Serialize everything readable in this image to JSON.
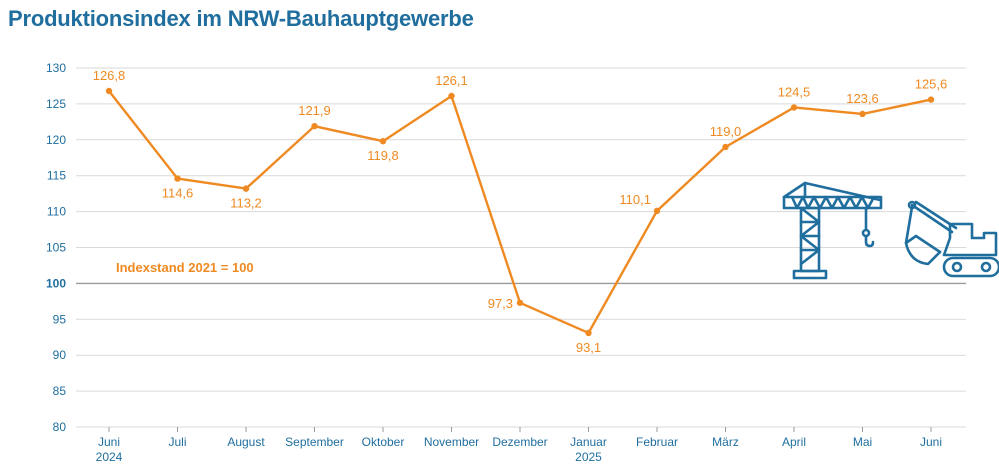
{
  "title": "Produktionsindex im NRW-Bauhauptgewerbe",
  "annotation": "Indexstand 2021 = 100",
  "colors": {
    "line": "#ef8a22",
    "text_blue": "#1f6e9e",
    "grid": "#d9d9d9",
    "icon": "#1f6e9e"
  },
  "icons": [
    "crane-icon",
    "excavator-icon"
  ],
  "chart_data": {
    "type": "line",
    "title": "Produktionsindex im NRW-Bauhauptgewerbe",
    "categories": [
      "Juni",
      "Juli",
      "August",
      "September",
      "Oktober",
      "November",
      "Dezember",
      "Januar",
      "Februar",
      "März",
      "April",
      "Mai",
      "Juni"
    ],
    "category_sublabels": [
      "2024",
      "",
      "",
      "",
      "",
      "",
      "",
      "2025",
      "",
      "",
      "",
      "",
      ""
    ],
    "values": [
      126.8,
      114.6,
      113.2,
      121.9,
      119.8,
      126.1,
      97.3,
      93.1,
      110.1,
      119.0,
      124.5,
      123.6,
      125.6
    ],
    "value_labels": [
      "126,8",
      "114,6",
      "113,2",
      "121,9",
      "119,8",
      "126,1",
      "97,3",
      "93,1",
      "110,1",
      "119,0",
      "124,5",
      "123,6",
      "125,6"
    ],
    "ylim": [
      80,
      130
    ],
    "yticks": [
      80,
      85,
      90,
      95,
      100,
      105,
      110,
      115,
      120,
      125,
      130
    ],
    "highlight_ytick": 100,
    "grid": true
  }
}
